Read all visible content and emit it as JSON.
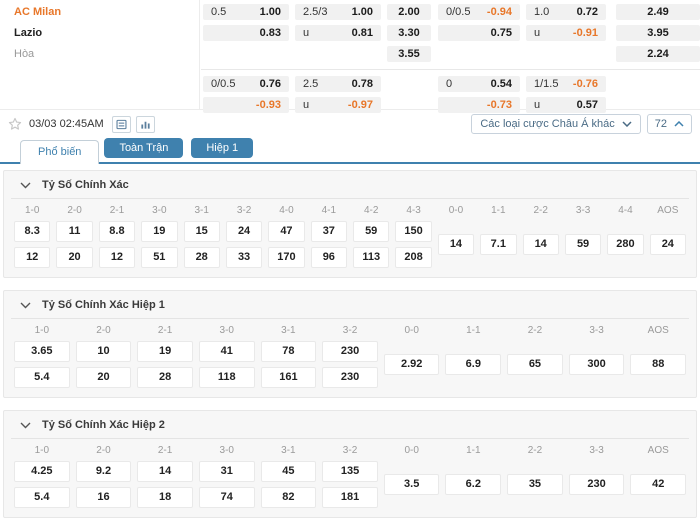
{
  "accent": {
    "orange": "#E8772A",
    "blue": "#3F81AE"
  },
  "match": {
    "teams": [
      {
        "name": "AC Milan",
        "role": "home"
      },
      {
        "name": "Lazio",
        "role": "away"
      },
      {
        "name": "Hòa",
        "role": "draw"
      }
    ],
    "blocks": [
      {
        "groups": [
          {
            "type": "pair",
            "cells": [
              {
                "l": "0.5",
                "v": "1.00"
              },
              {
                "l": "",
                "v": "0.83"
              }
            ]
          },
          {
            "type": "pair",
            "cells": [
              {
                "l": "2.5/3",
                "v": "1.00"
              },
              {
                "l": "u",
                "v": "0.81"
              }
            ]
          },
          {
            "type": "single",
            "cells": [
              "2.00",
              "3.30",
              "3.55"
            ]
          },
          {
            "type": "pair",
            "cells": [
              {
                "l": "0/0.5",
                "v": "-0.94"
              },
              {
                "l": "",
                "v": "0.75"
              }
            ]
          },
          {
            "type": "pair",
            "cells": [
              {
                "l": "1.0",
                "v": "0.72"
              },
              {
                "l": "u",
                "v": "-0.91"
              }
            ]
          },
          {
            "type": "single",
            "cells": [
              "2.49",
              "3.95",
              "2.24"
            ]
          }
        ]
      },
      {
        "groups": [
          {
            "type": "pair",
            "cells": [
              {
                "l": "0/0.5",
                "v": "0.76"
              },
              {
                "l": "",
                "v": "-0.93"
              }
            ]
          },
          {
            "type": "pair",
            "cells": [
              {
                "l": "2.5",
                "v": "0.78"
              },
              {
                "l": "u",
                "v": "-0.97"
              }
            ]
          },
          {
            "type": "single",
            "cells": []
          },
          {
            "type": "pair",
            "cells": [
              {
                "l": "0",
                "v": "0.54"
              },
              {
                "l": "",
                "v": "-0.73"
              }
            ]
          },
          {
            "type": "pair",
            "cells": [
              {
                "l": "1/1.5",
                "v": "-0.76"
              },
              {
                "l": "u",
                "v": "0.57"
              }
            ]
          },
          {
            "type": "single",
            "cells": []
          }
        ]
      }
    ]
  },
  "toolbar": {
    "datetime": "03/03 02:45AM",
    "dropdown_label": "Các loại cược Châu Á khác",
    "markets_count": "72"
  },
  "tabs": [
    {
      "label": "Phổ biến",
      "active": true
    },
    {
      "label": "Toàn Trận",
      "active": false
    },
    {
      "label": "Hiệp 1",
      "active": false
    }
  ],
  "sections": [
    {
      "title": "Tỷ Số Chính Xác",
      "columns": [
        "1-0",
        "2-0",
        "2-1",
        "3-0",
        "3-1",
        "3-2",
        "4-0",
        "4-1",
        "4-2",
        "4-3",
        "0-0",
        "1-1",
        "2-2",
        "3-3",
        "4-4",
        "AOS"
      ],
      "row1": [
        "8.3",
        "11",
        "8.8",
        "19",
        "15",
        "24",
        "47",
        "37",
        "59",
        "150"
      ],
      "row2": [
        "12",
        "20",
        "12",
        "51",
        "28",
        "33",
        "170",
        "96",
        "113",
        "208"
      ],
      "singles": [
        "14",
        "7.1",
        "14",
        "59",
        "280",
        "24"
      ]
    },
    {
      "title": "Tỷ Số Chính Xác Hiệp 1",
      "columns": [
        "1-0",
        "2-0",
        "2-1",
        "3-0",
        "3-1",
        "3-2",
        "0-0",
        "1-1",
        "2-2",
        "3-3",
        "AOS"
      ],
      "row1": [
        "3.65",
        "10",
        "19",
        "41",
        "78",
        "230"
      ],
      "row2": [
        "5.4",
        "20",
        "28",
        "118",
        "161",
        "230"
      ],
      "singles": [
        "2.92",
        "6.9",
        "65",
        "300",
        "88"
      ]
    },
    {
      "title": "Tỷ Số Chính Xác Hiệp 2",
      "columns": [
        "1-0",
        "2-0",
        "2-1",
        "3-0",
        "3-1",
        "3-2",
        "0-0",
        "1-1",
        "2-2",
        "3-3",
        "AOS"
      ],
      "row1": [
        "4.25",
        "9.2",
        "14",
        "31",
        "45",
        "135"
      ],
      "row2": [
        "5.4",
        "16",
        "18",
        "74",
        "82",
        "181"
      ],
      "singles": [
        "3.5",
        "6.2",
        "35",
        "230",
        "42"
      ]
    }
  ]
}
